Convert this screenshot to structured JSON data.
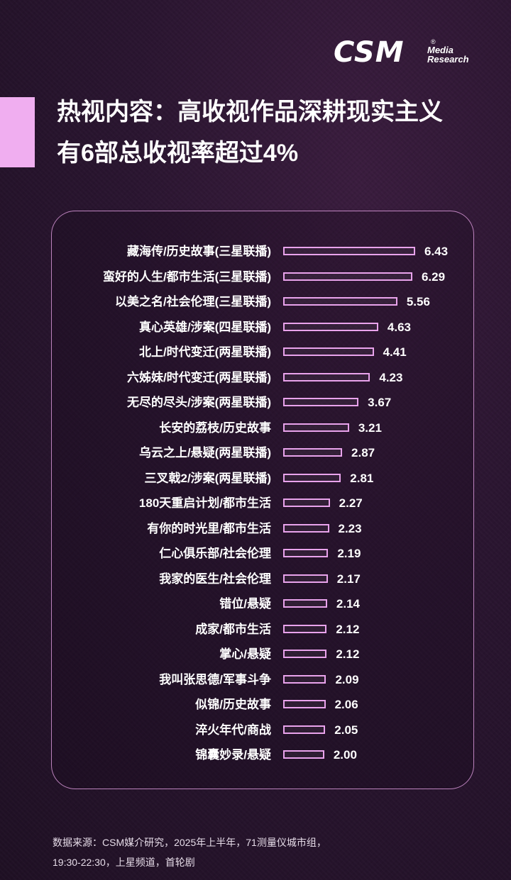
{
  "logo": {
    "main": "CSM",
    "reg": "®",
    "sub1": "Media",
    "sub2": "Research"
  },
  "title": {
    "line1": "热视内容：高收视作品深耕现实主义",
    "line2": "有6部总收视率超过4%"
  },
  "chart_data": {
    "type": "bar",
    "orientation": "horizontal",
    "categories": [
      "藏海传/历史故事(三星联播)",
      "蛮好的人生/都市生活(三星联播)",
      "以美之名/社会伦理(三星联播)",
      "真心英雄/涉案(四星联播)",
      "北上/时代变迁(两星联播)",
      "六姊妹/时代变迁(两星联播)",
      "无尽的尽头/涉案(两星联播)",
      "长安的荔枝/历史故事",
      "乌云之上/悬疑(两星联播)",
      "三叉戟2/涉案(两星联播)",
      "180天重启计划/都市生活",
      "有你的时光里/都市生活",
      "仁心俱乐部/社会伦理",
      "我家的医生/社会伦理",
      "错位/悬疑",
      "成家/都市生活",
      "掌心/悬疑",
      "我叫张思德/军事斗争",
      "似锦/历史故事",
      "淬火年代/商战",
      "锦囊妙录/悬疑"
    ],
    "values": [
      6.43,
      6.29,
      5.56,
      4.63,
      4.41,
      4.23,
      3.67,
      3.21,
      2.87,
      2.81,
      2.27,
      2.23,
      2.19,
      2.17,
      2.14,
      2.12,
      2.12,
      2.09,
      2.06,
      2.05,
      2.0
    ],
    "value_labels": [
      "6.43",
      "6.29",
      "5.56",
      "4.63",
      "4.41",
      "4.23",
      "3.67",
      "3.21",
      "2.87",
      "2.81",
      "2.27",
      "2.23",
      "2.19",
      "2.17",
      "2.14",
      "2.12",
      "2.12",
      "2.09",
      "2.06",
      "2.05",
      "2.00"
    ],
    "xlim": [
      0,
      6.43
    ],
    "grid": false,
    "legend": "none",
    "bar_color": "#e9a3ec"
  },
  "source": {
    "line1": "数据来源：CSM媒介研究，2025年上半年，71测量仪城市组，",
    "line2": "19:30-22:30，上星频道，首轮剧"
  },
  "colors": {
    "accent": "#f0aef0",
    "bar_border": "#e9a3ec",
    "panel_border": "#f0aaf0"
  }
}
